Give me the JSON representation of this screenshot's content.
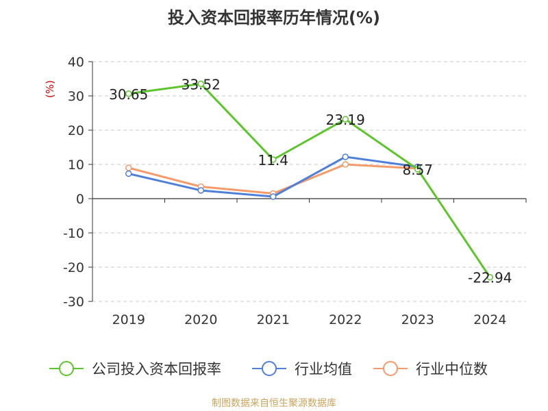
{
  "title": "投入资本回报率历年情况(%)",
  "source": "制图数据来自恒生聚源数据库",
  "colors": {
    "company": "#5cc52b",
    "industry_mean": "#4e7fd9",
    "industry_median": "#f59a6a",
    "unit_label": "#cc0000"
  },
  "chart_data": {
    "type": "line",
    "title": "投入资本回报率历年情况(%)",
    "ylabel": "(%)",
    "xlabel": "",
    "ylim": [
      -30,
      40
    ],
    "yticks": [
      -30,
      -20,
      -10,
      0,
      10,
      20,
      30,
      40
    ],
    "grid": true,
    "legend_position": "bottom",
    "categories": [
      "2019",
      "2020",
      "2021",
      "2022",
      "2023",
      "2024"
    ],
    "series": [
      {
        "name": "公司投入资本回报率",
        "values": [
          30.65,
          33.52,
          11.4,
          23.19,
          8.57,
          -22.94
        ],
        "labels": [
          "30.65",
          "33.52",
          "11.4",
          "23.19",
          "8.57",
          "-22.94"
        ]
      },
      {
        "name": "行业均值",
        "values": [
          7.3,
          2.4,
          0.6,
          12.2,
          9.3,
          null
        ]
      },
      {
        "name": "行业中位数",
        "values": [
          9.0,
          3.5,
          1.5,
          10.0,
          8.8,
          null
        ]
      }
    ]
  }
}
